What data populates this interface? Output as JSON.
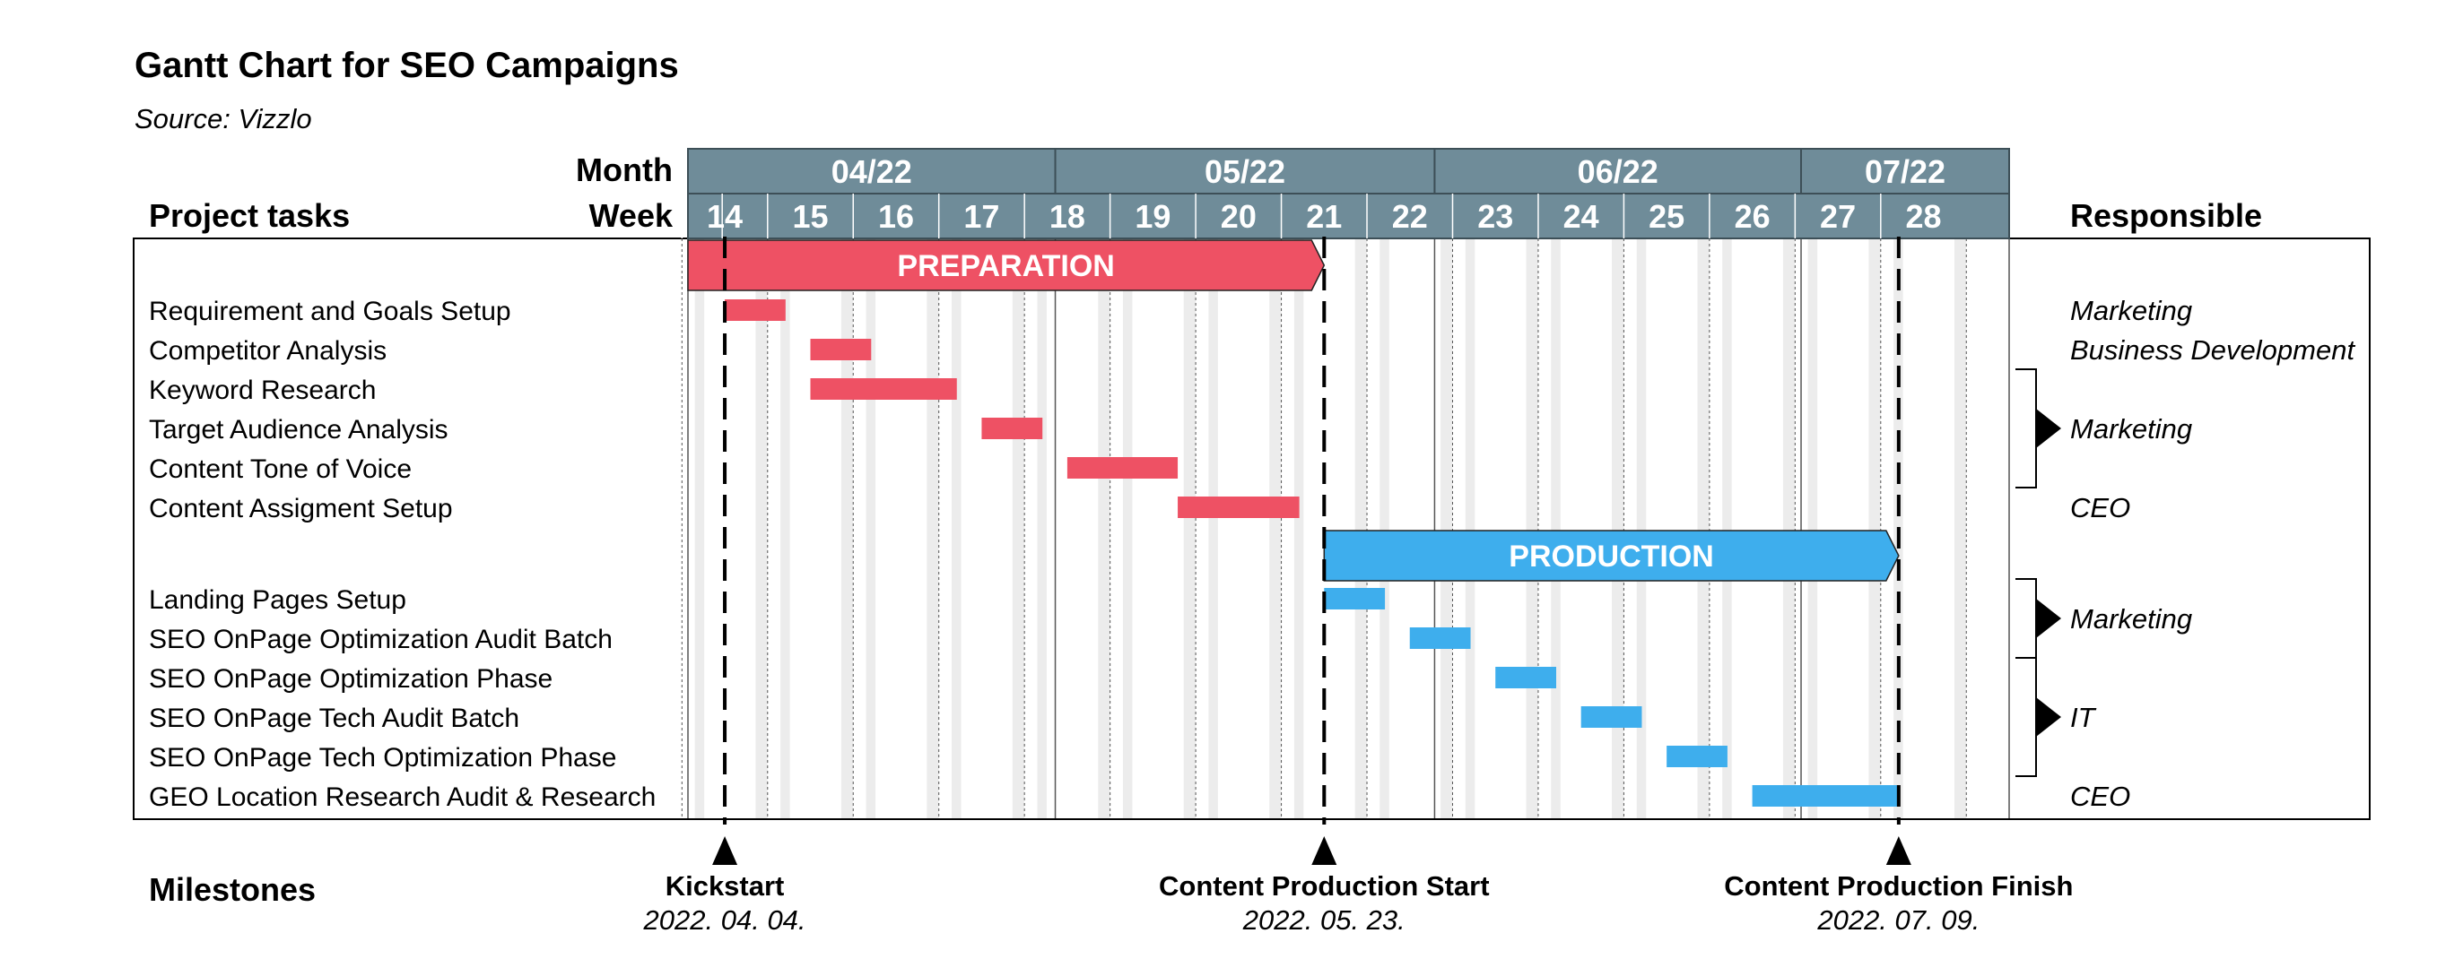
{
  "chart_data": {
    "type": "gantt",
    "title": "Gantt Chart for SEO Campaigns",
    "subtitle": "Source: Vizzlo",
    "labels": {
      "month": "Month",
      "week": "Week",
      "project_tasks": "Project tasks",
      "responsible": "Responsible",
      "milestones": "Milestones"
    },
    "colors": {
      "header": "#6f8c99",
      "preparation": "#ee5164",
      "production": "#3eaeed",
      "shade": "#ececec"
    },
    "week_range": [
      14,
      28
    ],
    "weeks": [
      "14",
      "15",
      "16",
      "17",
      "18",
      "19",
      "20",
      "21",
      "22",
      "23",
      "24",
      "25",
      "26",
      "27",
      "28"
    ],
    "months": [
      {
        "label": "04/22",
        "start": 13.57,
        "end": 17.86
      },
      {
        "label": "05/22",
        "start": 17.86,
        "end": 22.29
      },
      {
        "label": "06/22",
        "start": 22.29,
        "end": 26.57
      },
      {
        "label": "07/22",
        "start": 26.57,
        "end": 29
      }
    ],
    "phases": [
      {
        "name": "PREPARATION",
        "start": 13.57,
        "end": 21.0,
        "color": "#ee5164",
        "tasks": [
          {
            "name": "Requirement and Goals Setup",
            "start": 14.0,
            "end": 14.71
          },
          {
            "name": "Competitor Analysis",
            "start": 15.0,
            "end": 15.71
          },
          {
            "name": "Keyword Research",
            "start": 15.0,
            "end": 16.71
          },
          {
            "name": "Target Audience Analysis",
            "start": 17.0,
            "end": 17.71
          },
          {
            "name": "Content Tone of Voice",
            "start": 18.0,
            "end": 19.29
          },
          {
            "name": "Content Assigment Setup",
            "start": 19.29,
            "end": 20.71
          }
        ]
      },
      {
        "name": "PRODUCTION",
        "start": 21.0,
        "end": 27.71,
        "color": "#3eaeed",
        "tasks": [
          {
            "name": "Landing Pages Setup",
            "start": 21.0,
            "end": 21.71
          },
          {
            "name": "SEO OnPage Optimization Audit Batch",
            "start": 22.0,
            "end": 22.71
          },
          {
            "name": "SEO OnPage Optimization Phase",
            "start": 23.0,
            "end": 23.71
          },
          {
            "name": "SEO OnPage Tech Audit Batch",
            "start": 24.0,
            "end": 24.71
          },
          {
            "name": "SEO OnPage Tech Optimization Phase",
            "start": 25.0,
            "end": 25.71
          },
          {
            "name": "GEO Location Research Audit & Research",
            "start": 26.0,
            "end": 27.71
          }
        ]
      }
    ],
    "responsible": [
      {
        "label": "Marketing",
        "first_task": 0,
        "last_task": 0,
        "bracket": false
      },
      {
        "label": "Business Development",
        "first_task": 1,
        "last_task": 1,
        "bracket": false
      },
      {
        "label": "Marketing",
        "first_task": 2,
        "last_task": 4,
        "bracket": true
      },
      {
        "label": "CEO",
        "first_task": 5,
        "last_task": 5,
        "bracket": false
      },
      {
        "label": "Marketing",
        "first_task": 6,
        "last_task": 7,
        "bracket": true
      },
      {
        "label": "IT",
        "first_task": 8,
        "last_task": 10,
        "bracket": true
      },
      {
        "label": "CEO",
        "first_task": 11,
        "last_task": 11,
        "bracket": false
      }
    ],
    "milestones": [
      {
        "name": "Kickstart",
        "date": "2022. 04. 04.",
        "week": 14.0
      },
      {
        "name": "Content Production Start",
        "date": "2022. 05. 23.",
        "week": 21.0
      },
      {
        "name": "Content Production Finish",
        "date": "2022. 07. 09.",
        "week": 27.71
      }
    ]
  }
}
